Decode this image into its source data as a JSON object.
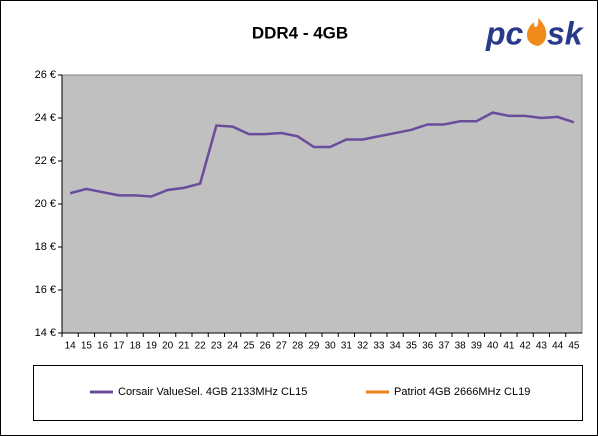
{
  "chart_data": {
    "type": "line",
    "title": "DDR4 - 4GB",
    "logo": [
      "pc",
      "sk"
    ],
    "categories": [
      "14",
      "15",
      "16",
      "17",
      "18",
      "19",
      "20",
      "21",
      "22",
      "23",
      "24",
      "25",
      "26",
      "27",
      "28",
      "29",
      "30",
      "31",
      "32",
      "33",
      "34",
      "35",
      "36",
      "37",
      "38",
      "39",
      "40",
      "41",
      "42",
      "43",
      "44",
      "45"
    ],
    "series": [
      {
        "name": "Corsair ValueSel. 4GB 2133MHz CL15",
        "color": "#6a4c9c",
        "values": [
          20.5,
          20.7,
          20.55,
          20.4,
          20.4,
          20.35,
          20.65,
          20.75,
          20.95,
          23.65,
          23.6,
          23.25,
          23.25,
          23.3,
          23.15,
          22.65,
          22.65,
          23.0,
          23.0,
          23.15,
          23.3,
          23.45,
          23.7,
          23.7,
          23.85,
          23.85,
          24.25,
          24.1,
          24.1,
          24.0,
          24.05,
          23.8
        ]
      },
      {
        "name": "Patriot 4GB 2666MHz CL19",
        "color": "#e8821e",
        "values": [
          null,
          null,
          null,
          null,
          null,
          null,
          null,
          null,
          null,
          null,
          null,
          null,
          null,
          null,
          null,
          null,
          null,
          null,
          null,
          null,
          null,
          null,
          null,
          null,
          null,
          null,
          null,
          null,
          null,
          null,
          null,
          null
        ]
      }
    ],
    "ylim": [
      14,
      26
    ],
    "yticks": [
      {
        "value": 14,
        "label": "14 €"
      },
      {
        "value": 16,
        "label": "16 €"
      },
      {
        "value": 18,
        "label": "18 €"
      },
      {
        "value": 20,
        "label": "20 €"
      },
      {
        "value": 22,
        "label": "22 €"
      },
      {
        "value": 24,
        "label": "24 €"
      },
      {
        "value": 26,
        "label": "26 €"
      }
    ],
    "grid": false,
    "plot_background": "#c0c0c0"
  }
}
